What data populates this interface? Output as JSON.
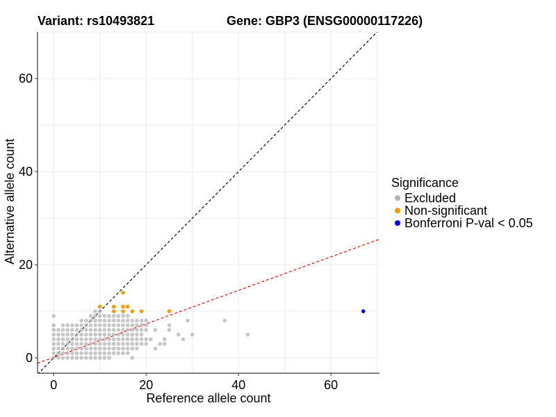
{
  "header": {
    "left_title": "Variant: rs10493821",
    "right_title": "Gene: GBP3 (ENSG00000117226)"
  },
  "legend": {
    "title": "Significance",
    "items": [
      {
        "label": "Excluded",
        "color": "#b3b3b3"
      },
      {
        "label": "Non-significant",
        "color": "#ff9900"
      },
      {
        "label": "Bonferroni P-val < 0.05",
        "color": "#0000ff"
      }
    ]
  },
  "chart_data": {
    "type": "scatter",
    "xlabel": "Reference allele count",
    "ylabel": "Alternative allele count",
    "xlim": [
      -3.5,
      70.5
    ],
    "ylim": [
      -3.3,
      70
    ],
    "x_ticks": [
      0,
      20,
      40,
      60
    ],
    "y_ticks": [
      0,
      20,
      40,
      60
    ],
    "grid": true,
    "legend_position": "right",
    "reference_lines": [
      {
        "name": "identity",
        "slope": 1.0,
        "intercept": 0,
        "style": "dashed",
        "color": "#000000"
      },
      {
        "name": "fit",
        "slope": 0.36,
        "intercept": 0.1,
        "style": "dashed",
        "color": "#ff0000"
      }
    ],
    "series": [
      {
        "name": "Excluded",
        "color": "#b3b3b3",
        "points": [
          [
            0,
            0
          ],
          [
            0,
            1
          ],
          [
            0,
            2
          ],
          [
            0,
            3
          ],
          [
            0,
            4
          ],
          [
            0,
            5
          ],
          [
            0,
            6
          ],
          [
            0,
            7
          ],
          [
            0,
            9
          ],
          [
            1,
            0
          ],
          [
            1,
            1
          ],
          [
            1,
            2
          ],
          [
            1,
            3
          ],
          [
            1,
            4
          ],
          [
            1,
            5
          ],
          [
            1,
            6
          ],
          [
            2,
            0
          ],
          [
            2,
            1
          ],
          [
            2,
            2
          ],
          [
            2,
            3
          ],
          [
            2,
            4
          ],
          [
            2,
            5
          ],
          [
            2,
            6
          ],
          [
            2,
            7
          ],
          [
            3,
            0
          ],
          [
            3,
            1
          ],
          [
            3,
            2
          ],
          [
            3,
            3
          ],
          [
            3,
            4
          ],
          [
            3,
            5
          ],
          [
            3,
            6
          ],
          [
            3,
            7
          ],
          [
            4,
            0
          ],
          [
            4,
            1
          ],
          [
            4,
            2
          ],
          [
            4,
            3
          ],
          [
            4,
            4
          ],
          [
            4,
            5
          ],
          [
            4,
            6
          ],
          [
            4,
            7
          ],
          [
            5,
            0
          ],
          [
            5,
            1
          ],
          [
            5,
            2
          ],
          [
            5,
            3
          ],
          [
            5,
            4
          ],
          [
            5,
            5
          ],
          [
            5,
            6
          ],
          [
            5,
            7
          ],
          [
            6,
            0
          ],
          [
            6,
            1
          ],
          [
            6,
            2
          ],
          [
            6,
            3
          ],
          [
            6,
            4
          ],
          [
            6,
            5
          ],
          [
            6,
            6
          ],
          [
            6,
            7
          ],
          [
            6,
            8
          ],
          [
            7,
            0
          ],
          [
            7,
            1
          ],
          [
            7,
            2
          ],
          [
            7,
            3
          ],
          [
            7,
            4
          ],
          [
            7,
            5
          ],
          [
            7,
            6
          ],
          [
            7,
            7
          ],
          [
            7,
            8
          ],
          [
            8,
            0
          ],
          [
            8,
            1
          ],
          [
            8,
            2
          ],
          [
            8,
            3
          ],
          [
            8,
            4
          ],
          [
            8,
            5
          ],
          [
            8,
            6
          ],
          [
            8,
            7
          ],
          [
            8,
            8
          ],
          [
            8,
            9
          ],
          [
            9,
            0
          ],
          [
            9,
            1
          ],
          [
            9,
            2
          ],
          [
            9,
            3
          ],
          [
            9,
            4
          ],
          [
            9,
            5
          ],
          [
            9,
            6
          ],
          [
            9,
            7
          ],
          [
            9,
            8
          ],
          [
            9,
            9
          ],
          [
            9,
            10
          ],
          [
            10,
            0
          ],
          [
            10,
            1
          ],
          [
            10,
            2
          ],
          [
            10,
            3
          ],
          [
            10,
            4
          ],
          [
            10,
            5
          ],
          [
            10,
            6
          ],
          [
            10,
            7
          ],
          [
            10,
            8
          ],
          [
            10,
            9
          ],
          [
            10,
            10
          ],
          [
            11,
            0
          ],
          [
            11,
            1
          ],
          [
            11,
            2
          ],
          [
            11,
            3
          ],
          [
            11,
            4
          ],
          [
            11,
            5
          ],
          [
            11,
            6
          ],
          [
            11,
            7
          ],
          [
            11,
            8
          ],
          [
            11,
            9
          ],
          [
            12,
            0
          ],
          [
            12,
            1
          ],
          [
            12,
            2
          ],
          [
            12,
            3
          ],
          [
            12,
            4
          ],
          [
            12,
            5
          ],
          [
            12,
            6
          ],
          [
            12,
            7
          ],
          [
            12,
            8
          ],
          [
            12,
            9
          ],
          [
            13,
            1
          ],
          [
            13,
            2
          ],
          [
            13,
            3
          ],
          [
            13,
            4
          ],
          [
            13,
            5
          ],
          [
            13,
            6
          ],
          [
            13,
            7
          ],
          [
            13,
            8
          ],
          [
            13,
            9
          ],
          [
            14,
            1
          ],
          [
            14,
            2
          ],
          [
            14,
            3
          ],
          [
            14,
            4
          ],
          [
            14,
            5
          ],
          [
            14,
            6
          ],
          [
            14,
            7
          ],
          [
            14,
            8
          ],
          [
            14,
            9
          ],
          [
            15,
            1
          ],
          [
            15,
            2
          ],
          [
            15,
            3
          ],
          [
            15,
            4
          ],
          [
            15,
            5
          ],
          [
            15,
            6
          ],
          [
            15,
            7
          ],
          [
            15,
            8
          ],
          [
            15,
            9
          ],
          [
            16,
            1
          ],
          [
            16,
            2
          ],
          [
            16,
            3
          ],
          [
            16,
            4
          ],
          [
            16,
            5
          ],
          [
            16,
            6
          ],
          [
            16,
            7
          ],
          [
            16,
            8
          ],
          [
            16,
            9
          ],
          [
            17,
            2
          ],
          [
            17,
            3
          ],
          [
            17,
            4
          ],
          [
            17,
            5
          ],
          [
            17,
            6
          ],
          [
            17,
            7
          ],
          [
            17,
            8
          ],
          [
            18,
            2
          ],
          [
            18,
            3
          ],
          [
            18,
            4
          ],
          [
            18,
            5
          ],
          [
            18,
            6
          ],
          [
            18,
            7
          ],
          [
            18,
            8
          ],
          [
            19,
            3
          ],
          [
            19,
            4
          ],
          [
            19,
            5
          ],
          [
            19,
            6
          ],
          [
            19,
            7
          ],
          [
            19,
            8
          ],
          [
            20,
            3
          ],
          [
            20,
            4
          ],
          [
            20,
            6
          ],
          [
            20,
            7
          ],
          [
            20,
            8
          ],
          [
            17,
            0
          ],
          [
            21,
            4
          ],
          [
            22,
            6
          ],
          [
            22,
            2
          ],
          [
            23,
            3
          ],
          [
            24,
            4
          ],
          [
            24,
            3
          ],
          [
            25,
            6
          ],
          [
            25,
            7
          ],
          [
            27,
            5
          ],
          [
            28,
            4
          ],
          [
            29,
            8
          ],
          [
            30,
            5
          ],
          [
            37,
            8
          ],
          [
            42,
            5
          ]
        ]
      },
      {
        "name": "Non-significant",
        "color": "#ff9900",
        "points": [
          [
            10,
            11
          ],
          [
            13,
            10
          ],
          [
            13,
            11
          ],
          [
            15,
            10
          ],
          [
            15,
            11
          ],
          [
            15,
            14
          ],
          [
            16,
            11
          ],
          [
            17,
            10
          ],
          [
            19,
            10
          ],
          [
            25,
            10
          ]
        ]
      },
      {
        "name": "Bonferroni P-val < 0.05",
        "color": "#0000ff",
        "points": [
          [
            67,
            10
          ]
        ]
      }
    ]
  }
}
